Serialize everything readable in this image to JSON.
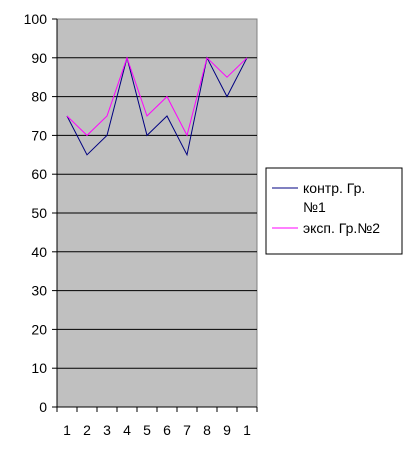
{
  "chart_data": {
    "type": "line",
    "x": [
      "1",
      "2",
      "3",
      "4",
      "5",
      "6",
      "7",
      "8",
      "9",
      "1"
    ],
    "series": [
      {
        "name": "контр. Гр. №1",
        "name_lines": [
          "контр. Гр.",
          "№1"
        ],
        "color": "#000080",
        "values": [
          75,
          65,
          70,
          90,
          70,
          75,
          65,
          90,
          80,
          90
        ]
      },
      {
        "name": "эксп. Гр.№2",
        "name_lines": [
          "эксп. Гр.№2"
        ],
        "color": "#ff00ff",
        "values": [
          75,
          70,
          75,
          90,
          75,
          80,
          70,
          90,
          85,
          90
        ]
      }
    ],
    "ylim": [
      0,
      100
    ],
    "yticks": [
      "0",
      "10",
      "20",
      "30",
      "40",
      "50",
      "60",
      "70",
      "80",
      "90",
      "100"
    ],
    "grid": true,
    "plot_background": "#c0c0c0",
    "legend_position": "right",
    "title": "",
    "xlabel": "",
    "ylabel": ""
  }
}
